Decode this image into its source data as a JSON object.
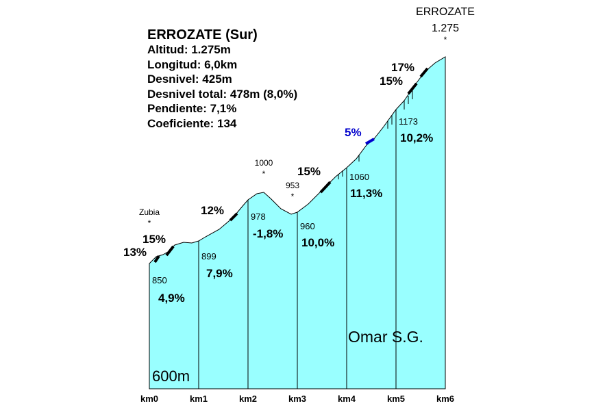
{
  "header": {
    "title": "ERROZATE (Sur)",
    "stats": [
      "Altitud:  1.275m",
      "Longitud:  6,0km",
      "Desnivel:  425m",
      "Desnivel total:  478m (8,0%)",
      "Pendiente:  7,1%",
      "Coeficiente:  134"
    ]
  },
  "summit": {
    "name": "ERROZATE",
    "altitude": "1.275",
    "marker": "*"
  },
  "places": [
    {
      "name": "Zubia",
      "marker": "*"
    },
    {
      "name": "1000",
      "marker": "*"
    },
    {
      "name": "953",
      "marker": "*"
    }
  ],
  "segments": [
    {
      "start": "850",
      "gradient": "4,9%"
    },
    {
      "start": "899",
      "gradient": "7,9%"
    },
    {
      "start": "978",
      "gradient": "-1,8%"
    },
    {
      "start": "960",
      "gradient": "10,0%"
    },
    {
      "start": "1060",
      "gradient": "11,3%"
    },
    {
      "start": "1173",
      "gradient": "10,2%"
    }
  ],
  "ramps": [
    "13%",
    "15%",
    "12%",
    "15%",
    "5%",
    "17%",
    "15%"
  ],
  "km": [
    "km0",
    "km1",
    "km2",
    "km3",
    "km4",
    "km5",
    "km6"
  ],
  "base": "600m",
  "credit": "Omar S.G."
}
